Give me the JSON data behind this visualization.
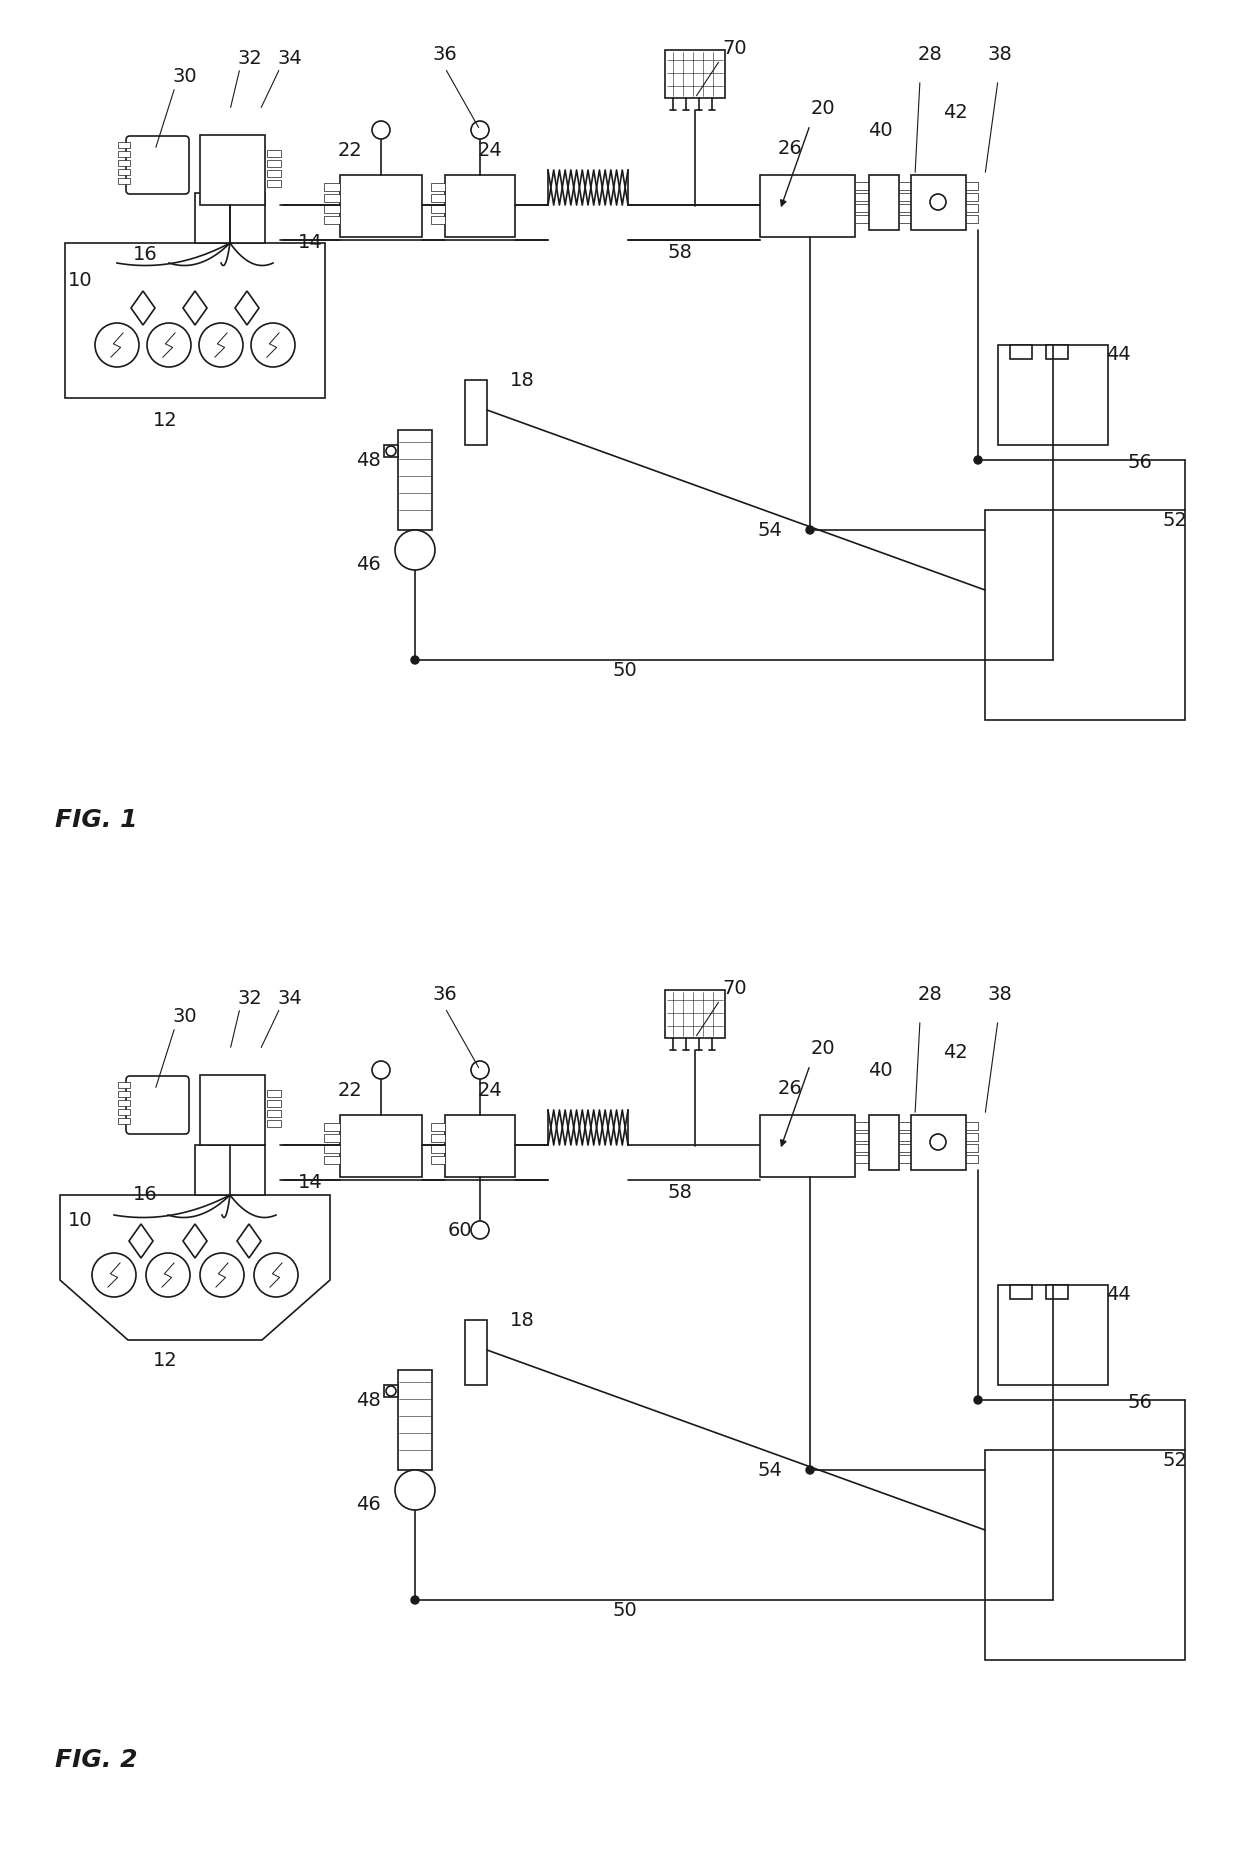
{
  "bg_color": "#ffffff",
  "line_color": "#1a1a1a",
  "fig1_title": "FIG. 1",
  "fig2_title": "FIG. 2",
  "lw": 1.2,
  "lw_thin": 0.6,
  "label_fs": 12,
  "figlabel_fs": 18
}
